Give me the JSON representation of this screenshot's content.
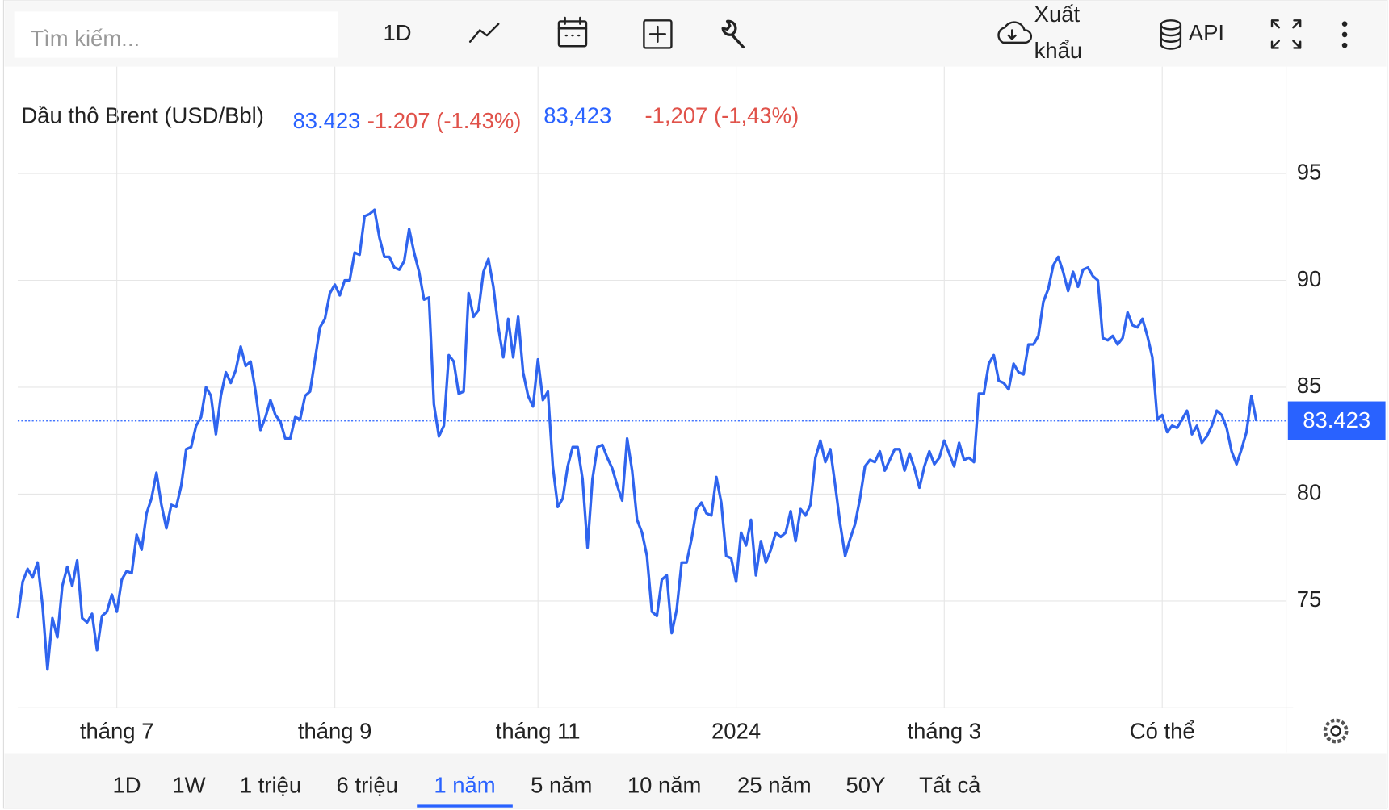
{
  "toolbar": {
    "search_placeholder": "Tìm kiếm...",
    "interval": "1D",
    "export": [
      "Xuất",
      "khẩu"
    ],
    "api": "API"
  },
  "header": {
    "name": "Dầu thô Brent (USD/Bbl)",
    "price": "83.423",
    "change": "-1.207 (-1.43%)",
    "price_alt": "83,423",
    "change_alt": "-1,207 (-1,43%)"
  },
  "chart_data": {
    "type": "line",
    "color": "#2f64ee",
    "values": [
      74.2,
      75.9,
      76.5,
      76.1,
      76.8,
      74.8,
      71.8,
      74.2,
      73.3,
      75.7,
      76.6,
      75.7,
      76.9,
      74.2,
      74.0,
      74.4,
      72.7,
      74.3,
      74.5,
      75.3,
      74.5,
      76.0,
      76.4,
      76.3,
      78.1,
      77.4,
      79.1,
      79.8,
      81.0,
      79.5,
      78.4,
      79.5,
      79.4,
      80.4,
      82.1,
      82.2,
      83.2,
      83.6,
      85.0,
      84.6,
      82.8,
      84.6,
      85.7,
      85.2,
      85.8,
      86.9,
      86.0,
      86.2,
      84.8,
      83.0,
      83.6,
      84.4,
      83.7,
      83.4,
      82.6,
      82.6,
      83.6,
      83.5,
      84.6,
      84.8,
      86.3,
      87.8,
      88.2,
      89.4,
      89.8,
      89.3,
      90.0,
      90.0,
      91.3,
      91.2,
      93.0,
      93.1,
      93.3,
      92.0,
      91.1,
      91.1,
      90.6,
      90.5,
      90.9,
      92.4,
      91.3,
      90.4,
      89.1,
      89.2,
      84.2,
      82.7,
      83.2,
      86.5,
      86.2,
      84.7,
      84.8,
      89.4,
      88.3,
      88.6,
      90.4,
      91.0,
      89.7,
      87.8,
      86.4,
      88.2,
      86.4,
      88.3,
      85.7,
      84.6,
      84.1,
      86.3,
      84.4,
      84.8,
      81.3,
      79.4,
      79.8,
      81.3,
      82.2,
      82.2,
      80.7,
      77.5,
      80.7,
      82.2,
      82.3,
      81.7,
      81.2,
      80.4,
      79.7,
      82.6,
      81.1,
      78.8,
      78.2,
      77.1,
      74.5,
      74.3,
      76.0,
      76.2,
      73.5,
      74.6,
      76.8,
      76.8,
      77.9,
      79.3,
      79.6,
      79.1,
      79.0,
      80.8,
      79.6,
      77.1,
      77.0,
      75.9,
      78.2,
      77.6,
      78.8,
      76.2,
      77.8,
      76.8,
      77.4,
      78.2,
      78.0,
      78.2,
      79.2,
      77.8,
      79.3,
      79.0,
      79.5,
      81.7,
      82.5,
      81.5,
      82.1,
      80.4,
      78.6,
      77.1,
      77.9,
      78.6,
      79.8,
      81.3,
      81.6,
      81.5,
      82.0,
      81.1,
      81.6,
      82.1,
      82.1,
      81.1,
      81.9,
      81.2,
      80.3,
      81.3,
      82.0,
      81.4,
      81.7,
      82.5,
      81.9,
      81.3,
      82.4,
      81.6,
      81.7,
      81.5,
      84.7,
      84.7,
      86.1,
      86.5,
      85.3,
      85.2,
      84.9,
      86.1,
      85.7,
      85.6,
      87.0,
      87.0,
      87.4,
      89.0,
      89.6,
      90.7,
      91.1,
      90.4,
      89.5,
      90.4,
      89.7,
      90.5,
      90.6,
      90.2,
      90.0,
      87.3,
      87.2,
      87.4,
      87.0,
      87.3,
      88.5,
      87.9,
      87.8,
      88.2,
      87.4,
      86.4,
      83.5,
      83.7,
      82.9,
      83.2,
      83.1,
      83.5,
      83.9,
      82.8,
      83.2,
      82.4,
      82.7,
      83.2,
      83.9,
      83.7,
      83.1,
      82.0,
      81.4,
      82.1,
      82.9,
      84.6,
      83.423
    ],
    "xlim": [
      0,
      256
    ],
    "xticks": [
      {
        "value": 20,
        "label": "tháng 7"
      },
      {
        "value": 64,
        "label": "tháng 9"
      },
      {
        "value": 105,
        "label": "tháng 11"
      },
      {
        "value": 145,
        "label": "2024"
      },
      {
        "value": 187,
        "label": "tháng 3"
      },
      {
        "value": 231,
        "label": "Có thể"
      }
    ],
    "ylim": [
      70,
      100
    ],
    "yticks": [
      75,
      80,
      85,
      90,
      95
    ],
    "grid": true
  },
  "ranges": {
    "buttons": [
      "1D",
      "1W",
      "1 triệu",
      "6 triệu",
      "1 năm",
      "5 năm",
      "10 năm",
      "25 năm",
      "50Y",
      "Tất cả"
    ],
    "active": 4
  }
}
